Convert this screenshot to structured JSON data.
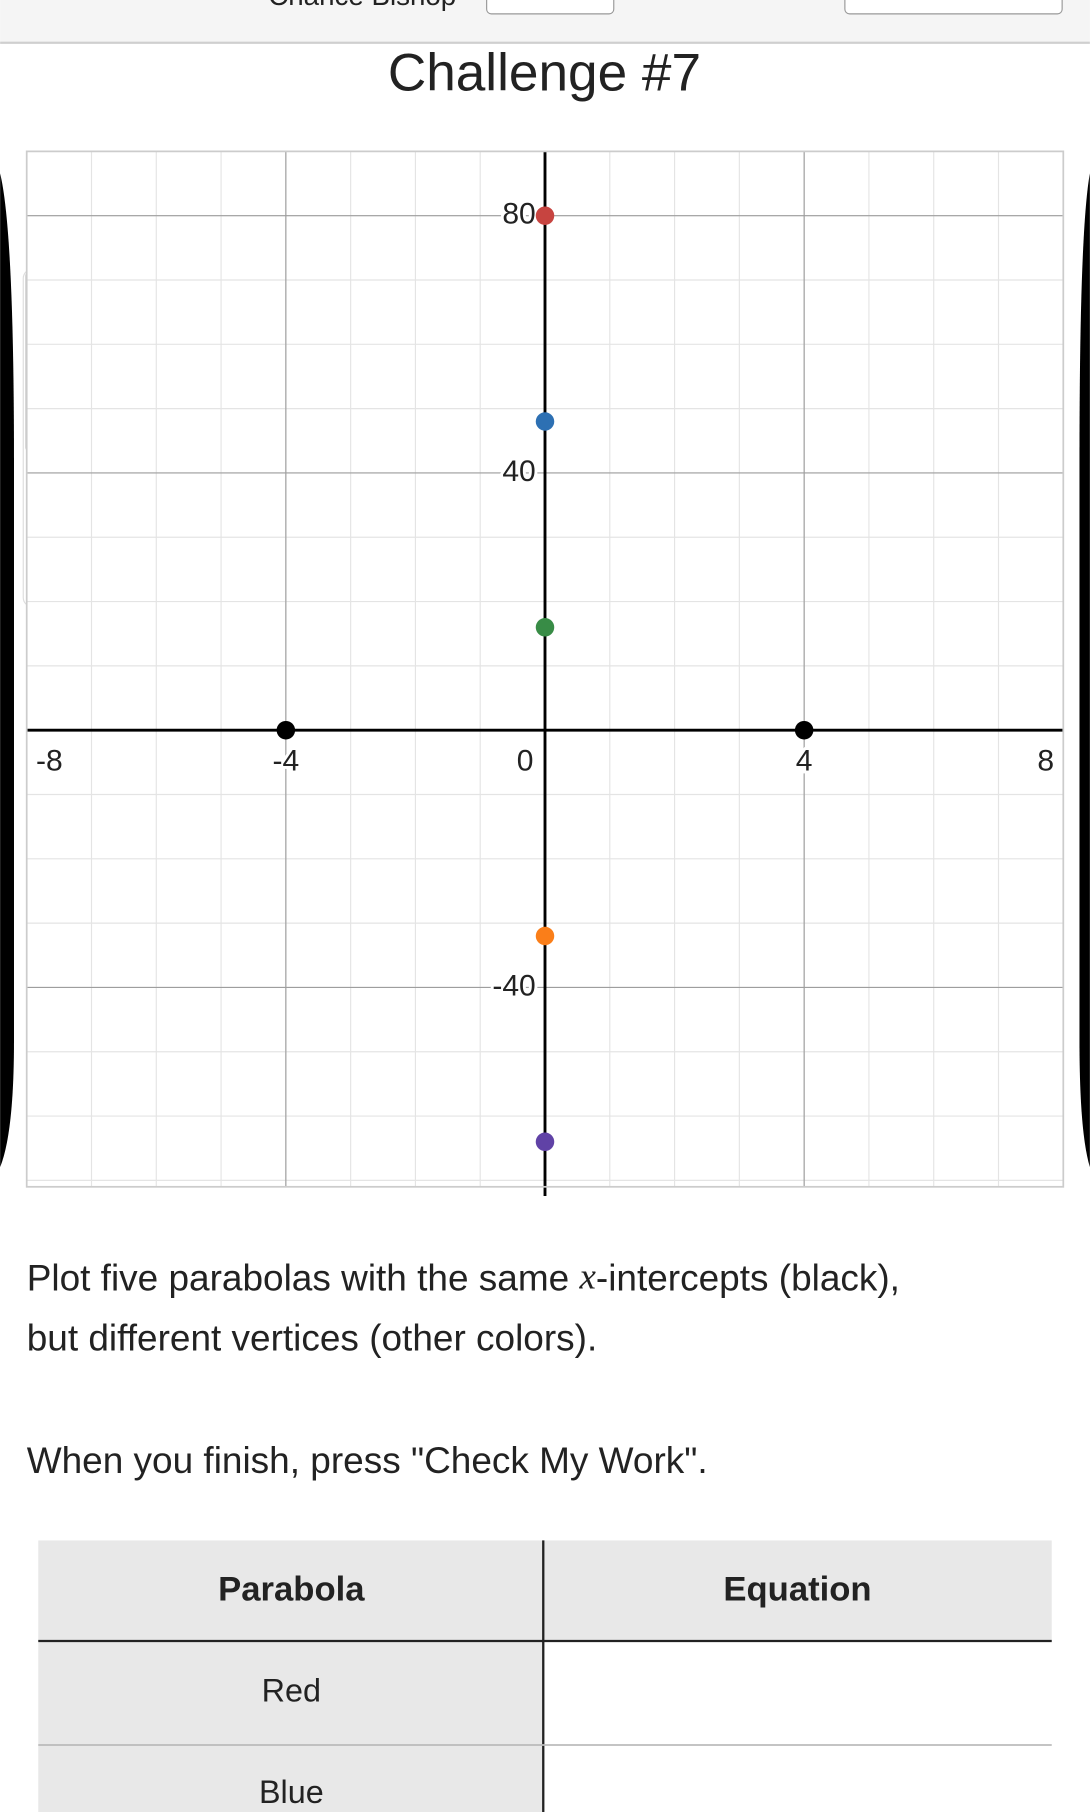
{
  "header": {
    "name": "Chance Bishop"
  },
  "title": "Challenge #7",
  "graph": {
    "xlim": [
      -8,
      8
    ],
    "ylim": [
      -71,
      90
    ],
    "xticks": [
      -8,
      -4,
      0,
      4,
      8
    ],
    "yticks": [
      -40,
      40,
      80
    ],
    "xgrid_step": 1,
    "ygrid_step": 10,
    "points": [
      {
        "x": -4,
        "y": 0,
        "color": "#000000"
      },
      {
        "x": 4,
        "y": 0,
        "color": "#000000"
      },
      {
        "x": 0,
        "y": 80,
        "color": "#c74440"
      },
      {
        "x": 0,
        "y": 48,
        "color": "#2d70b3"
      },
      {
        "x": 0,
        "y": 16,
        "color": "#388c46"
      },
      {
        "x": 0,
        "y": -32,
        "color": "#fa7e19"
      },
      {
        "x": 0,
        "y": -64,
        "color": "#6042a6"
      }
    ]
  },
  "instructions": {
    "line1_start": "Plot five parabolas with the same ",
    "variable": "x",
    "line1_end": "-intercepts (black),",
    "line2": "but different vertices (other colors).",
    "line3": "When you finish, press \"Check My Work\"."
  },
  "table": {
    "header": [
      "Parabola",
      "Equation"
    ],
    "rows": [
      "Red",
      "Blue"
    ]
  }
}
